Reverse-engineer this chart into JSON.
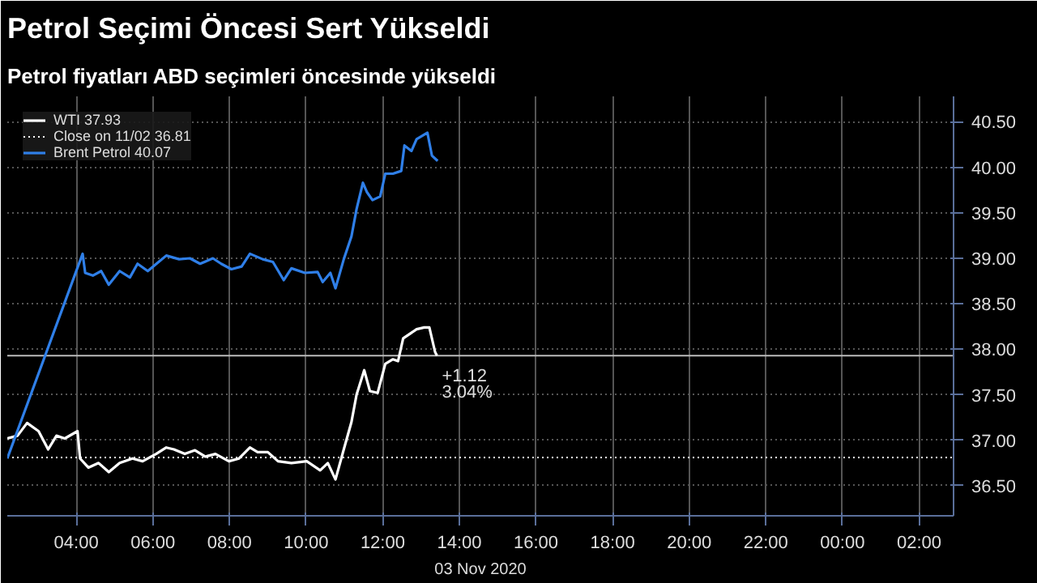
{
  "chart_data": {
    "type": "line",
    "title": "Petrol Seçimi Öncesi Sert Yükseldi",
    "subtitle": "Petrol fiyatları ABD seçimleri öncesinde yükseldi",
    "xlabel": "03 Nov 2020",
    "series": [
      {
        "name": "WTI 37.93",
        "color": "#ffffff",
        "x": [
          "2020-11-03T02:12",
          "2020-11-03T02:28",
          "2020-11-03T02:43",
          "2020-11-03T03:01",
          "2020-11-03T03:16",
          "2020-11-03T03:29",
          "2020-11-03T03:42",
          "2020-11-03T04:02",
          "2020-11-03T04:06",
          "2020-11-03T04:19",
          "2020-11-03T04:35",
          "2020-11-03T04:51",
          "2020-11-03T05:08",
          "2020-11-03T05:28",
          "2020-11-03T05:44",
          "2020-11-03T06:05",
          "2020-11-03T06:21",
          "2020-11-03T06:33",
          "2020-11-03T06:50",
          "2020-11-03T07:06",
          "2020-11-03T07:22",
          "2020-11-03T07:38",
          "2020-11-03T07:59",
          "2020-11-03T08:15",
          "2020-11-03T08:32",
          "2020-11-03T08:44",
          "2020-11-03T09:00",
          "2020-11-03T09:16",
          "2020-11-03T09:37",
          "2020-11-03T10:01",
          "2020-11-03T10:22",
          "2020-11-03T10:34",
          "2020-11-03T10:46",
          "2020-11-03T10:59",
          "2020-11-03T11:11",
          "2020-11-03T11:19",
          "2020-11-03T11:31",
          "2020-11-03T11:40",
          "2020-11-03T11:52",
          "2020-11-03T12:04",
          "2020-11-03T12:16",
          "2020-11-03T12:24",
          "2020-11-03T12:32",
          "2020-11-03T12:53",
          "2020-11-03T13:05",
          "2020-11-03T13:13",
          "2020-11-03T13:22",
          "2020-11-03T13:25"
        ],
        "values": [
          37.02,
          37.05,
          37.19,
          37.1,
          36.9,
          37.05,
          37.02,
          37.1,
          36.8,
          36.7,
          36.75,
          36.65,
          36.75,
          36.8,
          36.77,
          36.85,
          36.92,
          36.9,
          36.85,
          36.89,
          36.82,
          36.85,
          36.77,
          36.8,
          36.92,
          36.87,
          36.87,
          36.77,
          36.75,
          36.77,
          36.67,
          36.75,
          36.57,
          36.9,
          37.2,
          37.5,
          37.77,
          37.54,
          37.52,
          37.84,
          37.89,
          37.87,
          38.12,
          38.22,
          38.24,
          38.24,
          37.97,
          37.93
        ]
      },
      {
        "name": "Brent Petrol 40.07",
        "color": "#2f7fe8",
        "x": [
          "2020-11-03T02:12",
          "2020-11-03T04:10",
          "2020-11-03T04:14",
          "2020-11-03T04:26",
          "2020-11-03T04:39",
          "2020-11-03T04:51",
          "2020-11-03T05:08",
          "2020-11-03T05:24",
          "2020-11-03T05:36",
          "2020-11-03T05:52",
          "2020-11-03T06:09",
          "2020-11-03T06:21",
          "2020-11-03T06:41",
          "2020-11-03T06:58",
          "2020-11-03T07:14",
          "2020-11-03T07:34",
          "2020-11-03T07:47",
          "2020-11-03T08:03",
          "2020-11-03T08:19",
          "2020-11-03T08:32",
          "2020-11-03T08:52",
          "2020-11-03T09:08",
          "2020-11-03T09:25",
          "2020-11-03T09:37",
          "2020-11-03T09:58",
          "2020-11-03T10:18",
          "2020-11-03T10:26",
          "2020-11-03T10:38",
          "2020-11-03T10:46",
          "2020-11-03T10:59",
          "2020-11-03T11:11",
          "2020-11-03T11:19",
          "2020-11-03T11:29",
          "2020-11-03T11:35",
          "2020-11-03T11:44",
          "2020-11-03T11:56",
          "2020-11-03T12:04",
          "2020-11-03T12:16",
          "2020-11-03T12:29",
          "2020-11-03T12:34",
          "2020-11-03T12:45",
          "2020-11-03T12:53",
          "2020-11-03T13:10",
          "2020-11-03T13:17",
          "2020-11-03T13:26"
        ],
        "values": [
          36.8,
          39.05,
          38.84,
          38.81,
          38.86,
          38.71,
          38.86,
          38.79,
          38.94,
          38.86,
          38.96,
          39.03,
          38.99,
          39.0,
          38.94,
          39.0,
          38.94,
          38.88,
          38.91,
          39.05,
          38.99,
          38.96,
          38.76,
          38.89,
          38.84,
          38.85,
          38.74,
          38.84,
          38.67,
          38.99,
          39.24,
          39.54,
          39.83,
          39.73,
          39.64,
          39.68,
          39.93,
          39.93,
          39.96,
          40.24,
          40.18,
          40.31,
          40.38,
          40.13,
          40.07
        ]
      }
    ],
    "xlim": [
      "2020-11-03T02:12",
      "2020-11-04T02:54"
    ],
    "xticks": [
      {
        "value": "2020-11-03T04:00",
        "label": "04:00"
      },
      {
        "value": "2020-11-03T06:00",
        "label": "06:00"
      },
      {
        "value": "2020-11-03T08:00",
        "label": "08:00"
      },
      {
        "value": "2020-11-03T10:00",
        "label": "10:00"
      },
      {
        "value": "2020-11-03T12:00",
        "label": "12:00"
      },
      {
        "value": "2020-11-03T14:00",
        "label": "14:00"
      },
      {
        "value": "2020-11-03T16:00",
        "label": "16:00"
      },
      {
        "value": "2020-11-03T18:00",
        "label": "18:00"
      },
      {
        "value": "2020-11-03T20:00",
        "label": "20:00"
      },
      {
        "value": "2020-11-03T22:00",
        "label": "22:00"
      },
      {
        "value": "2020-11-04T00:00",
        "label": "00:00"
      },
      {
        "value": "2020-11-04T02:00",
        "label": "02:00"
      }
    ],
    "ylim": [
      36.17,
      40.78
    ],
    "yticks": [
      {
        "value": 36.5,
        "label": "36.50"
      },
      {
        "value": 37,
        "label": "37.00"
      },
      {
        "value": 37.5,
        "label": "37.50"
      },
      {
        "value": 38,
        "label": "38.00"
      },
      {
        "value": 38.5,
        "label": "38.50"
      },
      {
        "value": 39,
        "label": "39.00"
      },
      {
        "value": 39.5,
        "label": "39.50"
      },
      {
        "value": 40,
        "label": "40.00"
      },
      {
        "value": 40.5,
        "label": "40.50"
      }
    ],
    "ref_lines": [
      {
        "axis": "y",
        "value": 36.81,
        "label": "Close on 11/02 36.81",
        "color": "#ffffff",
        "line_style": "dotted"
      },
      {
        "axis": "y",
        "value": 37.93,
        "label": null,
        "color": "#bbbbbb",
        "line_style": "solid"
      }
    ],
    "annotations": [
      "+1.12",
      "3.04%"
    ],
    "grid": true,
    "legend": "top left"
  }
}
